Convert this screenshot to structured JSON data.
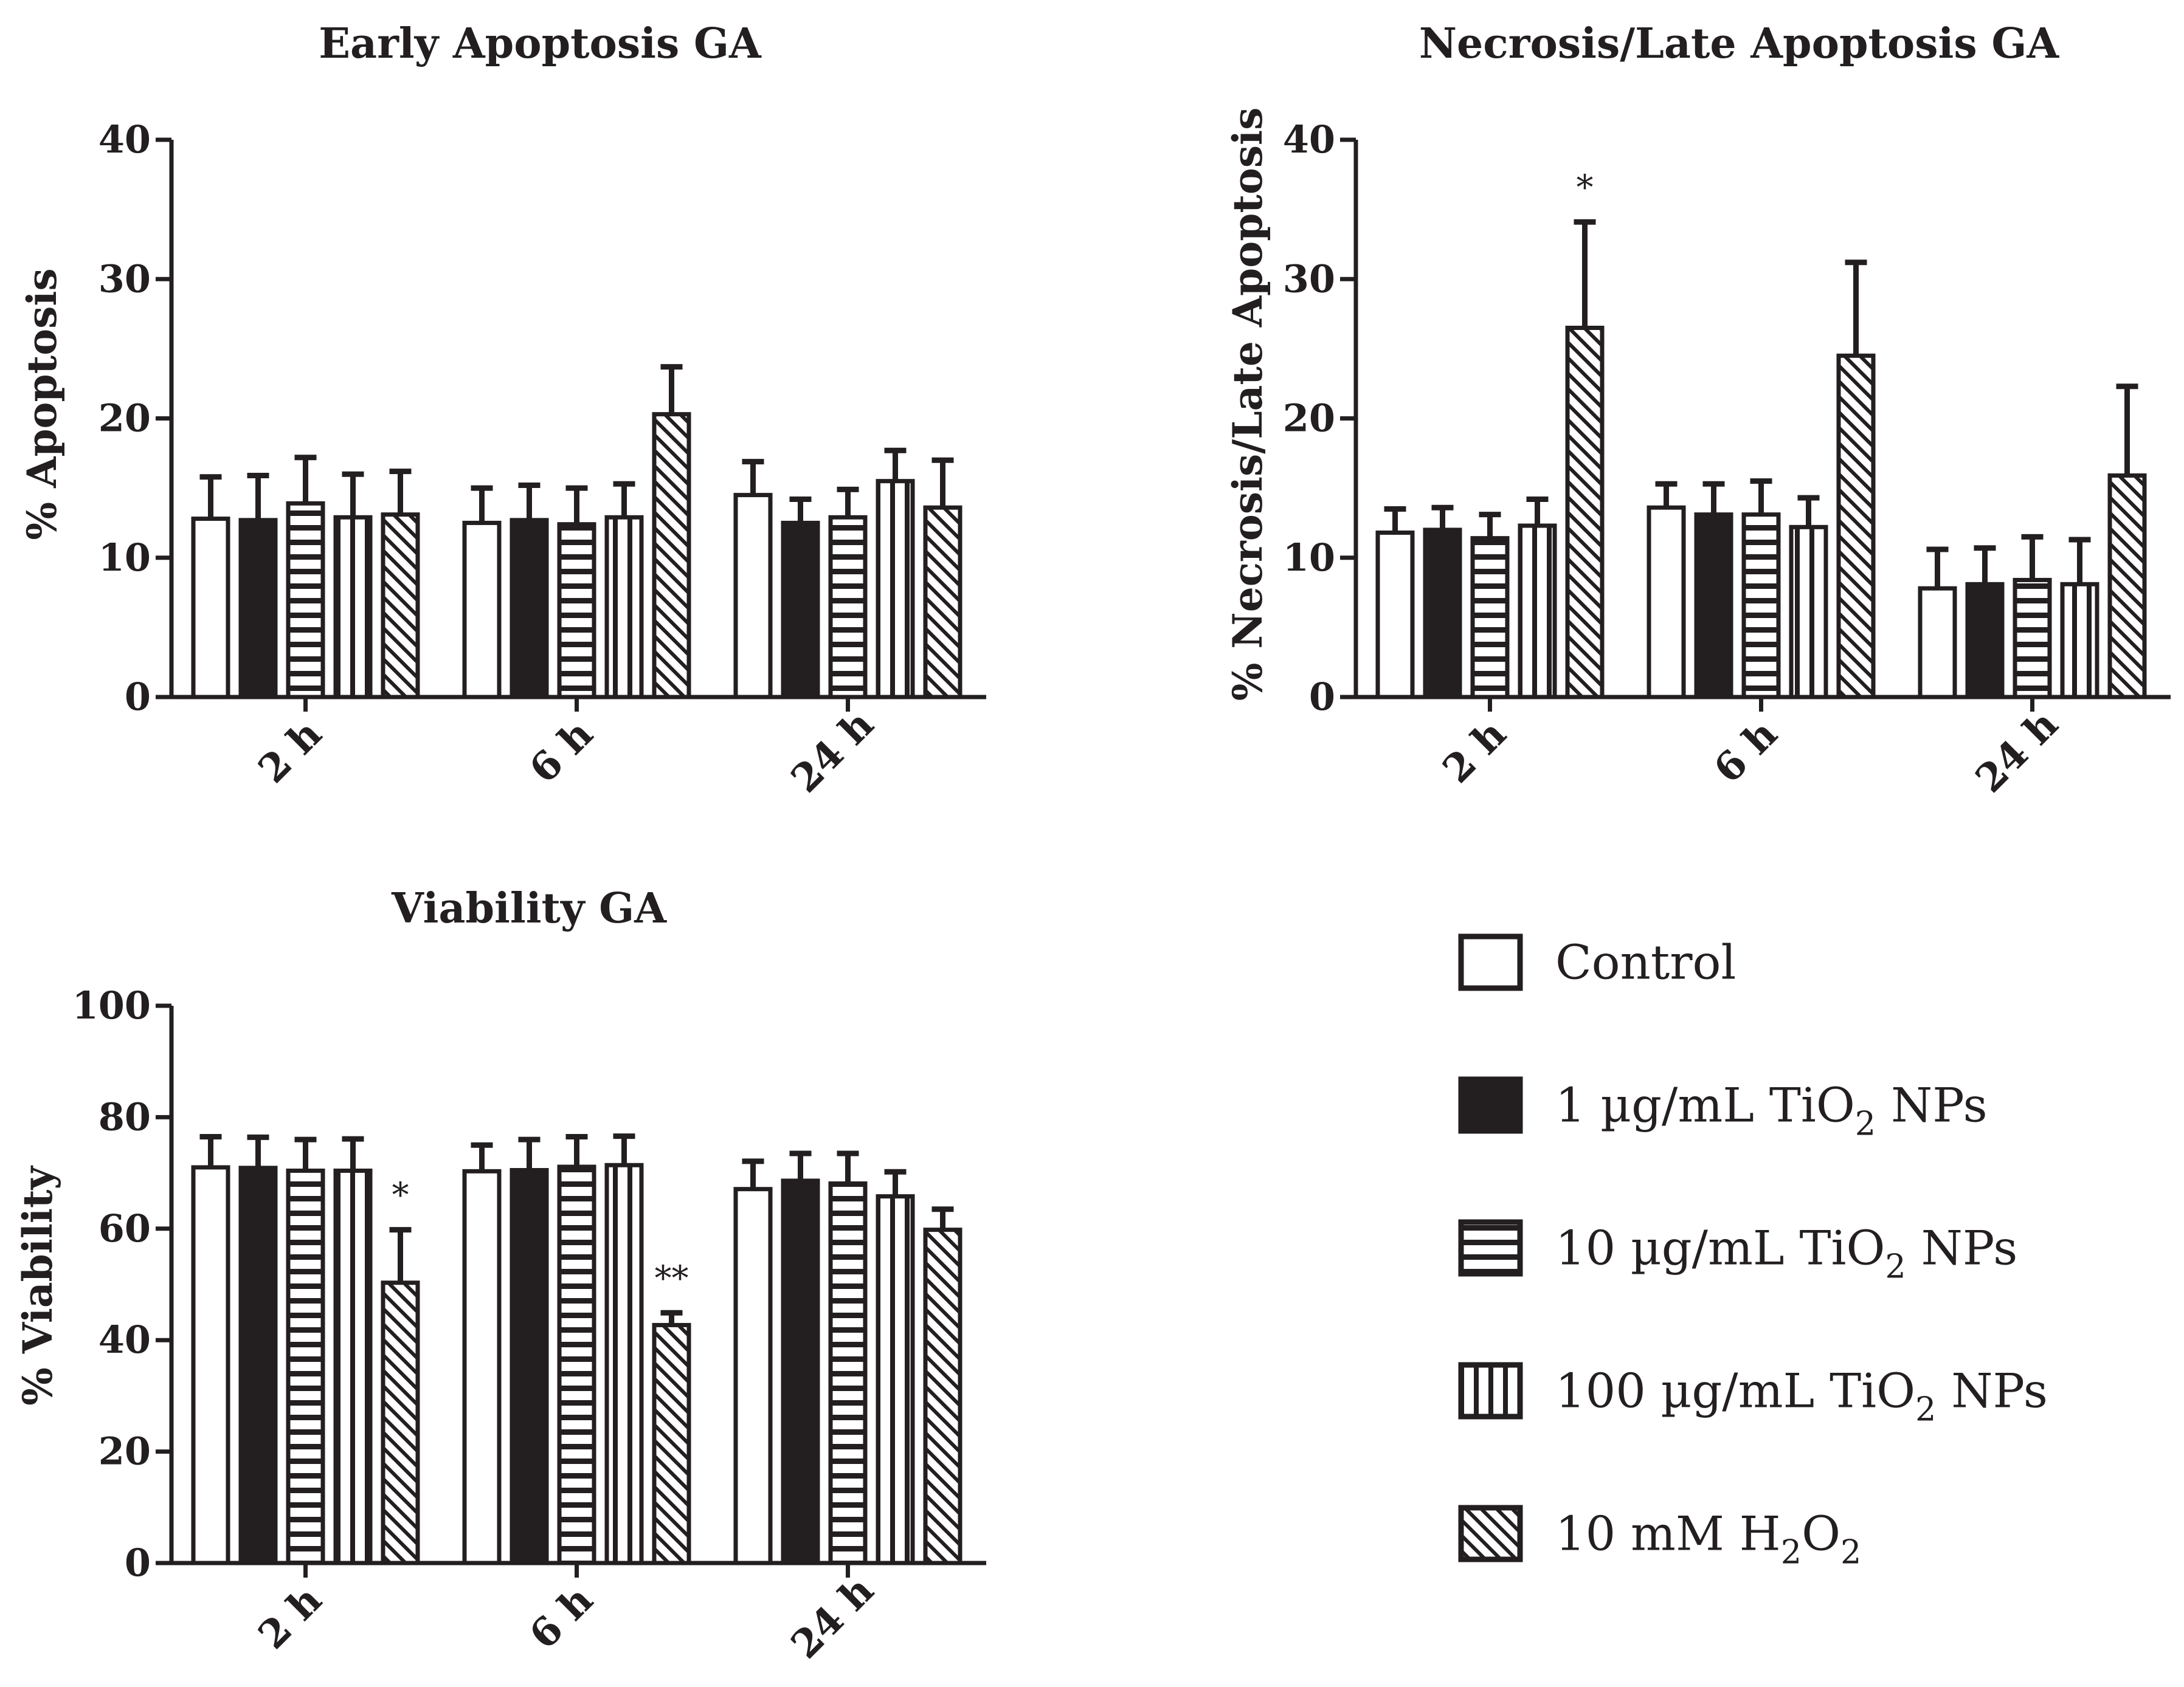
{
  "chart_data": [
    {
      "type": "bar",
      "title": "Early Apoptosis GA",
      "xlabel": "",
      "ylabel": "% Apoptosis",
      "ylim": [
        0,
        40
      ],
      "yticks": [
        "0",
        "10",
        "20",
        "30",
        "40"
      ],
      "categories": [
        "2 h",
        "6 h",
        "24 h"
      ],
      "series": [
        {
          "name": "Control",
          "values": [
            12.8,
            12.5,
            14.5
          ],
          "errors": [
            3.0,
            2.5,
            2.4
          ]
        },
        {
          "name": "1 µg/mL TiO2 NPs",
          "values": [
            12.7,
            12.7,
            12.5
          ],
          "errors": [
            3.2,
            2.5,
            1.7
          ]
        },
        {
          "name": "10 µg/mL TiO2 NPs",
          "values": [
            13.9,
            12.4,
            12.9
          ],
          "errors": [
            3.3,
            2.6,
            2.0
          ]
        },
        {
          "name": "100 µg/mL TiO2 NPs",
          "values": [
            12.9,
            12.9,
            15.5
          ],
          "errors": [
            3.1,
            2.4,
            2.2
          ]
        },
        {
          "name": "10 mM H2O2",
          "values": [
            13.1,
            20.3,
            13.6
          ],
          "errors": [
            3.1,
            3.4,
            3.4
          ]
        }
      ],
      "annotations": []
    },
    {
      "type": "bar",
      "title": "Necrosis/Late Apoptosis GA",
      "xlabel": "",
      "ylabel": "% Necrosis/Late Apoptosis",
      "ylim": [
        0,
        40
      ],
      "yticks": [
        "0",
        "10",
        "20",
        "30",
        "40"
      ],
      "categories": [
        "2 h",
        "6 h",
        "24 h"
      ],
      "series": [
        {
          "name": "Control",
          "values": [
            11.8,
            13.6,
            7.8
          ],
          "errors": [
            1.7,
            1.7,
            2.8
          ]
        },
        {
          "name": "1 µg/mL TiO2 NPs",
          "values": [
            12.0,
            13.1,
            8.1
          ],
          "errors": [
            1.6,
            2.2,
            2.6
          ]
        },
        {
          "name": "10 µg/mL TiO2 NPs",
          "values": [
            11.4,
            13.1,
            8.4
          ],
          "errors": [
            1.7,
            2.4,
            3.1
          ]
        },
        {
          "name": "100 µg/mL TiO2 NPs",
          "values": [
            12.3,
            12.2,
            8.1
          ],
          "errors": [
            1.9,
            2.1,
            3.2
          ]
        },
        {
          "name": "10 mM H2O2",
          "values": [
            26.5,
            24.5,
            15.9
          ],
          "errors": [
            7.6,
            6.7,
            6.4
          ]
        }
      ],
      "annotations": [
        {
          "series": 4,
          "category": 0,
          "text": "*"
        }
      ]
    },
    {
      "type": "bar",
      "title": "Viability GA",
      "xlabel": "",
      "ylabel": "% Viability",
      "ylim": [
        0,
        100
      ],
      "yticks": [
        "0",
        "20",
        "40",
        "60",
        "80",
        "100"
      ],
      "categories": [
        "2 h",
        "6 h",
        "24 h"
      ],
      "series": [
        {
          "name": "Control",
          "values": [
            71.0,
            70.3,
            67.1
          ],
          "errors": [
            5.5,
            4.7,
            5.0
          ]
        },
        {
          "name": "1 µg/mL TiO2 NPs",
          "values": [
            70.9,
            70.5,
            68.6
          ],
          "errors": [
            5.5,
            5.5,
            4.9
          ]
        },
        {
          "name": "10 µg/mL TiO2 NPs",
          "values": [
            70.4,
            71.1,
            68.1
          ],
          "errors": [
            5.6,
            5.4,
            5.4
          ]
        },
        {
          "name": "100 µg/mL TiO2 NPs",
          "values": [
            70.4,
            71.4,
            65.8
          ],
          "errors": [
            5.7,
            5.2,
            4.4
          ]
        },
        {
          "name": "10 mM H2O2",
          "values": [
            50.3,
            42.7,
            59.8
          ],
          "errors": [
            9.5,
            2.2,
            3.7
          ]
        }
      ],
      "annotations": [
        {
          "series": 4,
          "category": 0,
          "text": "*"
        },
        {
          "series": 4,
          "category": 1,
          "text": "**"
        }
      ]
    }
  ],
  "legend": {
    "items": [
      {
        "pattern": "empty",
        "label": "Control"
      },
      {
        "pattern": "solid",
        "label": "1 µg/mL TiO",
        "sub": "2",
        "suffix": " NPs"
      },
      {
        "pattern": "hlines",
        "label": "10 µg/mL TiO",
        "sub": "2",
        "suffix": " NPs"
      },
      {
        "pattern": "vlines",
        "label": "100 µg/mL TiO",
        "sub": "2",
        "suffix": " NPs"
      },
      {
        "pattern": "diag",
        "label": "10 mM H",
        "sub": "2",
        "mid": "O",
        "sub2": "2"
      }
    ]
  },
  "colors": {
    "ink": "#231f20",
    "fill": "#ffffff"
  }
}
